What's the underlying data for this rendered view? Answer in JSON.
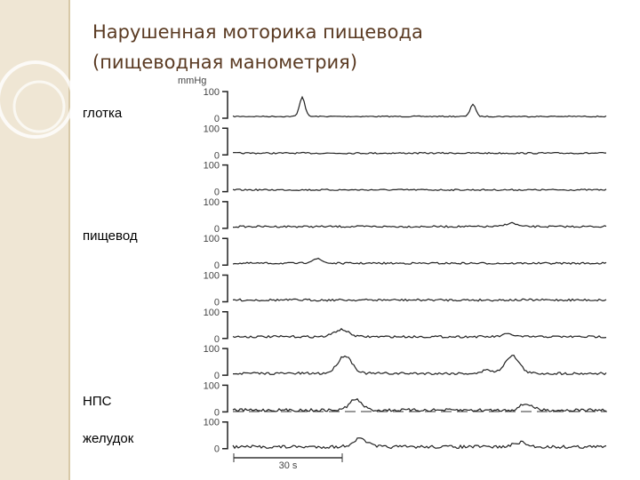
{
  "header": {
    "title_lines": [
      "Нарушенная моторика пищевода",
      "(пищеводная манометрия)"
    ]
  },
  "regions": [
    "глотка",
    "пищевод",
    "НПС",
    "желудок"
  ],
  "unit": "mmHg",
  "channels": [
    {
      "top": "100",
      "bottom": "0"
    },
    {
      "top": "100",
      "bottom": "0"
    },
    {
      "top": "100",
      "bottom": "0"
    },
    {
      "top": "100",
      "bottom": "0"
    },
    {
      "top": "100",
      "bottom": "0"
    },
    {
      "top": "100",
      "bottom": "0"
    },
    {
      "top": "100",
      "bottom": "0"
    },
    {
      "top": "100",
      "bottom": "0"
    },
    {
      "top": "100",
      "bottom": "0"
    },
    {
      "top": "100",
      "bottom": "0"
    }
  ],
  "time_scale": "30 s"
}
